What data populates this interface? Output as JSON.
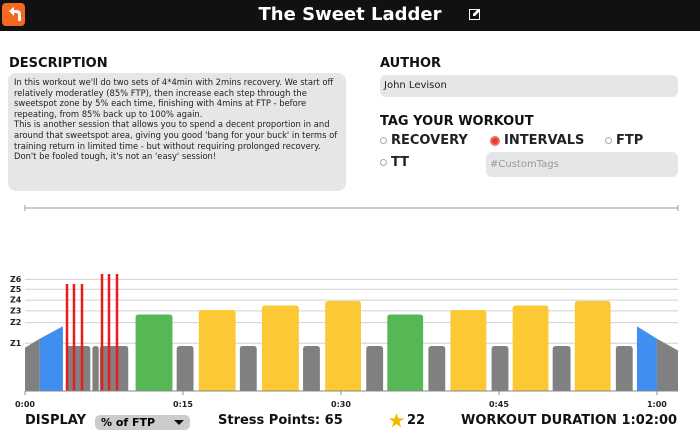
{
  "header": {
    "title": "The Sweet Ladder"
  },
  "description": {
    "label": "DESCRIPTION",
    "paragraphs": [
      "In this workout we'll do two sets of 4*4min with 2mins recovery. We start off relatively moderatley (85% FTP), then increase each step through the sweetspot zone by 5% each time, finishing with 4mins at FTP - before repeating, from 85% back up to 100% again.",
      "This is another session that allows you to spend a decent proportion in and around that sweetspot area, giving you good 'bang for your buck' in terms of training return in limited time - but without requiring prolonged recovery. Don't be fooled tough, it's not an 'easy' session!"
    ]
  },
  "author": {
    "label": "AUTHOR",
    "value": "John Levison"
  },
  "tags": {
    "label": "TAG YOUR WORKOUT",
    "options": [
      {
        "name": "RECOVERY",
        "selected": false
      },
      {
        "name": "INTERVALS",
        "selected": true
      },
      {
        "name": "FTP",
        "selected": false
      },
      {
        "name": "TT",
        "selected": false
      }
    ],
    "custom_placeholder": "#CustomTags"
  },
  "workout_chart": {
    "type": "workout",
    "xlim": [
      0,
      62
    ],
    "ylim": [
      0,
      130
    ],
    "xticks": [
      {
        "value": 0,
        "label": "0:00"
      },
      {
        "value": 15,
        "label": "0:15"
      },
      {
        "value": 30,
        "label": "0:30"
      },
      {
        "value": 45,
        "label": "0:45"
      },
      {
        "value": 60,
        "label": "1:00"
      }
    ],
    "yticks": [
      {
        "value": 53,
        "label": "Z1"
      },
      {
        "value": 76,
        "label": "Z2"
      },
      {
        "value": 89,
        "label": "Z3"
      },
      {
        "value": 101,
        "label": "Z4"
      },
      {
        "value": 113,
        "label": "Z5"
      },
      {
        "value": 124,
        "label": "Z6"
      }
    ],
    "blocks": [
      {
        "start": 0,
        "end": 1.4,
        "ramp": [
          48,
          58
        ],
        "color": "#808080"
      },
      {
        "start": 1.4,
        "end": 3.6,
        "ramp": [
          58,
          72
        ],
        "color": "#3f8ef0"
      },
      {
        "start": 3.9,
        "end": 6.2,
        "power": 50,
        "color": "#808080"
      },
      {
        "start": 6.4,
        "end": 7.0,
        "power": 50,
        "color": "#808080"
      },
      {
        "start": 7.1,
        "end": 9.8,
        "power": 50,
        "color": "#808080"
      },
      {
        "start": 10.5,
        "end": 14.0,
        "power": 85,
        "color": "#55b855"
      },
      {
        "start": 14.4,
        "end": 16.0,
        "power": 50,
        "color": "#808080"
      },
      {
        "start": 16.5,
        "end": 20.0,
        "power": 90,
        "color": "#fcc935"
      },
      {
        "start": 20.4,
        "end": 22.0,
        "power": 50,
        "color": "#808080"
      },
      {
        "start": 22.5,
        "end": 26.0,
        "power": 95,
        "color": "#fcc935"
      },
      {
        "start": 26.4,
        "end": 28.0,
        "power": 50,
        "color": "#808080"
      },
      {
        "start": 28.5,
        "end": 31.9,
        "power": 100,
        "color": "#fcc935"
      },
      {
        "start": 32.4,
        "end": 34.0,
        "power": 50,
        "color": "#808080"
      },
      {
        "start": 34.4,
        "end": 37.8,
        "power": 85,
        "color": "#55b855"
      },
      {
        "start": 38.3,
        "end": 39.9,
        "power": 50,
        "color": "#808080"
      },
      {
        "start": 40.4,
        "end": 43.8,
        "power": 90,
        "color": "#fcc935"
      },
      {
        "start": 44.3,
        "end": 45.9,
        "power": 50,
        "color": "#808080"
      },
      {
        "start": 46.3,
        "end": 49.7,
        "power": 95,
        "color": "#fcc935"
      },
      {
        "start": 50.1,
        "end": 51.8,
        "power": 50,
        "color": "#808080"
      },
      {
        "start": 52.2,
        "end": 55.6,
        "power": 100,
        "color": "#fcc935"
      },
      {
        "start": 56.1,
        "end": 57.7,
        "power": 50,
        "color": "#808080"
      },
      {
        "start": 58.1,
        "end": 60.0,
        "ramp": [
          72,
          58
        ],
        "color": "#3f8ef0"
      },
      {
        "start": 60.0,
        "end": 62.0,
        "ramp": [
          58,
          45
        ],
        "color": "#808080"
      }
    ]
  },
  "footer": {
    "display_label": "DISPLAY",
    "display_value": "% of FTP",
    "stress_label": "Stress Points:",
    "stress_value": 65,
    "stars": 22,
    "duration_label": "WORKOUT DURATION",
    "duration_value": "1:02:00"
  }
}
